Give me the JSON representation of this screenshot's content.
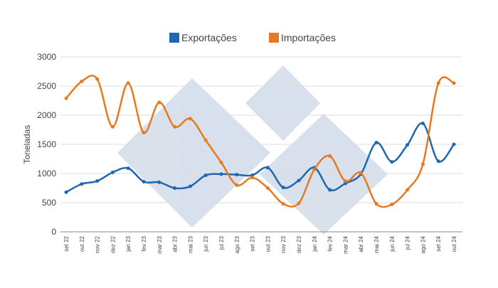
{
  "chart_data": {
    "type": "line",
    "y_label": "Toneladas",
    "categories": [
      "set 22",
      "out 22",
      "nov 22",
      "dez 22",
      "jan 23",
      "fev 23",
      "mar 23",
      "abr 23",
      "mai 23",
      "jun 23",
      "jul 23",
      "ago 23",
      "set 23",
      "out 23",
      "nov 23",
      "dez 23",
      "jan 24",
      "fev 24",
      "mar 24",
      "abr 24",
      "mai 24",
      "jun 24",
      "jul 24",
      "ago 24",
      "set 24",
      "out 24"
    ],
    "series": [
      {
        "name": "Exportações",
        "color": "#1f67b1",
        "values": [
          680,
          820,
          870,
          1020,
          1090,
          860,
          850,
          750,
          780,
          970,
          990,
          980,
          970,
          1100,
          760,
          880,
          1100,
          720,
          830,
          990,
          1530,
          1200,
          1490,
          1860,
          1210,
          1500
        ]
      },
      {
        "name": "Importações",
        "color": "#e8791f",
        "values": [
          2290,
          2580,
          2620,
          1800,
          2550,
          1700,
          2220,
          1800,
          1940,
          1570,
          1190,
          800,
          930,
          750,
          480,
          490,
          1070,
          1300,
          870,
          1010,
          480,
          470,
          720,
          1160,
          2550,
          2550
        ]
      }
    ],
    "ylim": [
      0,
      3000
    ],
    "yticks": [
      0,
      500,
      1000,
      1500,
      2000,
      2500,
      3000
    ],
    "grid": true
  }
}
